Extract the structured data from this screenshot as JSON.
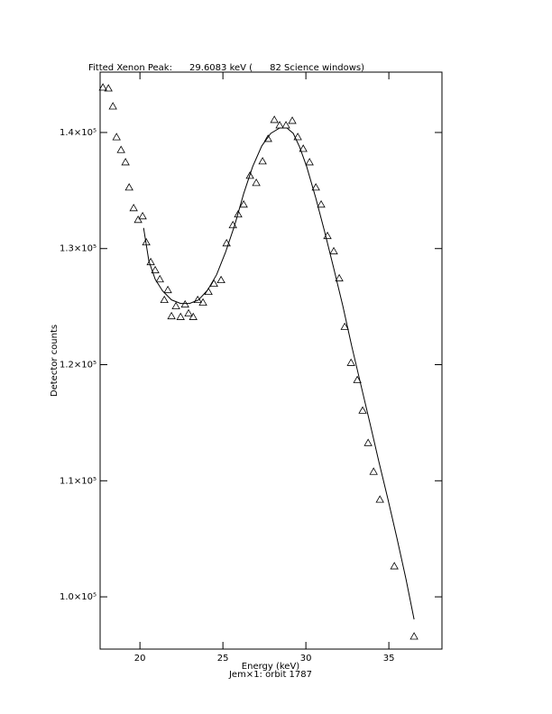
{
  "chart_data": {
    "type": "scatter",
    "title": "Fitted Xenon Peak:      29.6083 keV (      82 Science windows)",
    "x_label": "Energy (keV)",
    "y_label": "Detector counts",
    "subtitle": "Jem×1: orbit 1787",
    "xlim": [
      17.6,
      38.2
    ],
    "ylim": [
      95500,
      145200
    ],
    "xticks": [
      20,
      25,
      30,
      35
    ],
    "yticks": [
      {
        "value": 100000,
        "label": "1.0×10⁵"
      },
      {
        "value": 110000,
        "label": "1.1×10⁵"
      },
      {
        "value": 120000,
        "label": "1.2×10⁵"
      },
      {
        "value": 130000,
        "label": "1.3×10⁵"
      },
      {
        "value": 140000,
        "label": "1.4×10⁵"
      }
    ],
    "series": [
      {
        "style": "markers",
        "marker": "triangle",
        "color": "#000000",
        "x": [
          17.77,
          18.1,
          18.37,
          18.59,
          18.86,
          19.13,
          19.35,
          19.62,
          19.89,
          20.16,
          20.38,
          20.65,
          20.92,
          21.2,
          21.47,
          21.68,
          21.9,
          22.17,
          22.45,
          22.72,
          22.93,
          23.21,
          23.48,
          23.8,
          24.13,
          24.46,
          24.89,
          25.22,
          25.6,
          25.92,
          26.25,
          26.63,
          27.01,
          27.39,
          27.72,
          28.1,
          28.42,
          28.8,
          29.18,
          29.51,
          29.84,
          30.22,
          30.6,
          30.92,
          31.3,
          31.68,
          32.01,
          32.34,
          32.72,
          33.1,
          33.42,
          33.75,
          34.08,
          34.46,
          35.33,
          36.52
        ],
        "values": [
          143880,
          143800,
          142250,
          139600,
          138500,
          137440,
          135270,
          133490,
          132480,
          132790,
          130540,
          128840,
          128140,
          127360,
          125580,
          126430,
          124180,
          125040,
          124110,
          125190,
          124420,
          124110,
          125580,
          125350,
          126280,
          126980,
          127290,
          130460,
          132020,
          132950,
          133800,
          136280,
          135660,
          137520,
          139460,
          141090,
          140620,
          140620,
          141010,
          139610,
          138600,
          137440,
          135270,
          133800,
          131090,
          129770,
          127440,
          123260,
          120160,
          118680,
          116050,
          113260,
          110780,
          108380,
          102640,
          96590
        ]
      },
      {
        "style": "line",
        "color": "#000000",
        "x": [
          20.22,
          20.54,
          20.92,
          21.36,
          21.9,
          22.45,
          22.99,
          23.53,
          24.08,
          24.62,
          25.16,
          25.71,
          26.25,
          26.79,
          27.34,
          27.88,
          28.42,
          28.86,
          29.24,
          29.62,
          30.05,
          30.6,
          31.14,
          31.68,
          32.23,
          32.77,
          33.32,
          33.86,
          34.4,
          34.95,
          35.49,
          36.03,
          36.52
        ],
        "values": [
          131780,
          128910,
          127360,
          126360,
          125580,
          125270,
          125270,
          125580,
          126430,
          127750,
          129690,
          132020,
          134730,
          137050,
          138840,
          139920,
          140390,
          140390,
          139920,
          138760,
          137050,
          134340,
          131400,
          128290,
          125040,
          121550,
          118220,
          114960,
          111630,
          108380,
          105040,
          101550,
          98060
        ]
      }
    ]
  }
}
